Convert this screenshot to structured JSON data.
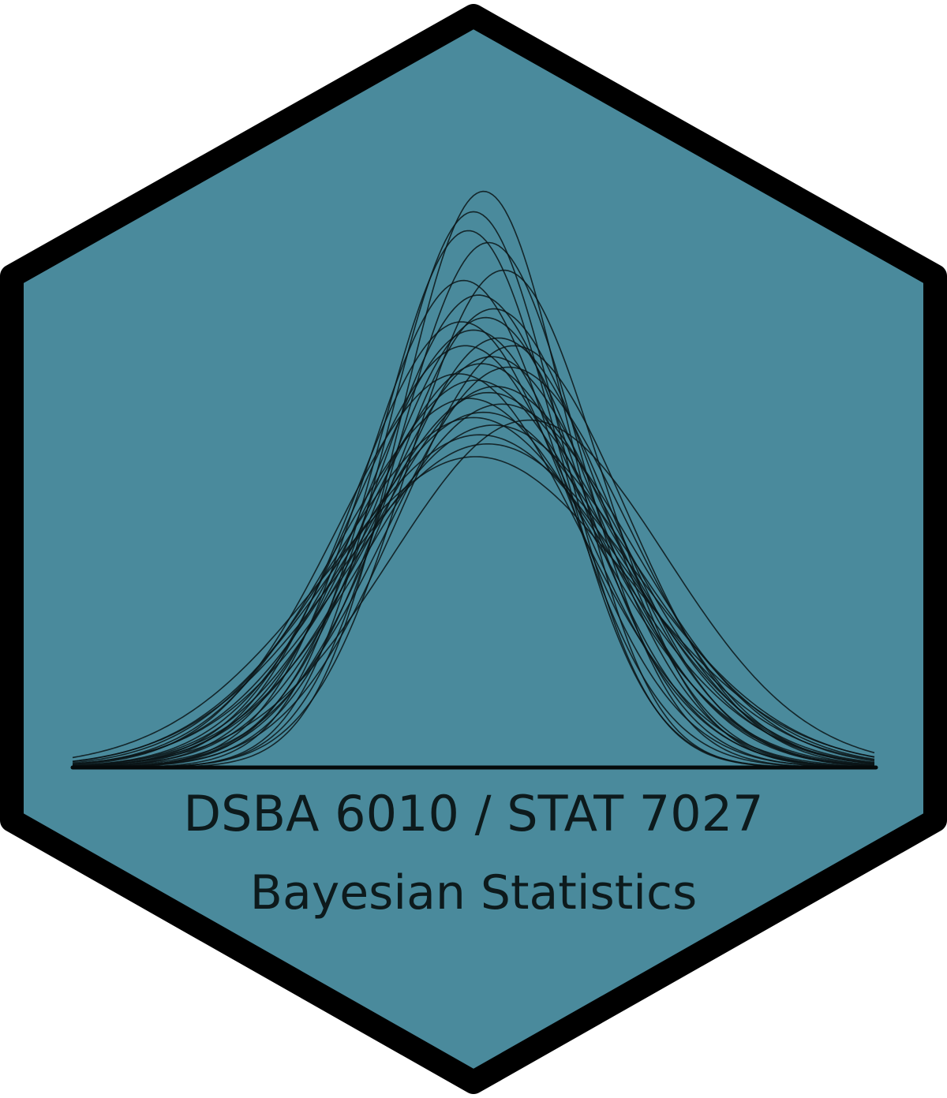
{
  "sticker": {
    "course_code": "DSBA 6010 / STAT 7027",
    "course_title": "Bayesian Statistics"
  },
  "colors": {
    "hex_fill": "#4a8a9c",
    "hex_border": "#000000",
    "curve_stroke": "#0a1416",
    "text": "#0d1a1c"
  },
  "graphic": {
    "icon": "normal-density-curves-icon",
    "curves": [
      {
        "mu": 0.0,
        "sigma": 0.85
      },
      {
        "mu": 0.1,
        "sigma": 0.82
      },
      {
        "mu": -0.05,
        "sigma": 0.88
      },
      {
        "mu": 0.15,
        "sigma": 0.9
      },
      {
        "mu": 0.3,
        "sigma": 0.95
      },
      {
        "mu": 0.05,
        "sigma": 1.0
      },
      {
        "mu": -0.1,
        "sigma": 0.97
      },
      {
        "mu": 0.2,
        "sigma": 1.03
      },
      {
        "mu": 0.12,
        "sigma": 1.05
      },
      {
        "mu": 0.0,
        "sigma": 1.08
      },
      {
        "mu": 0.25,
        "sigma": 1.1
      },
      {
        "mu": -0.08,
        "sigma": 1.12
      },
      {
        "mu": 0.18,
        "sigma": 1.15
      },
      {
        "mu": 0.08,
        "sigma": 1.17
      },
      {
        "mu": 0.35,
        "sigma": 1.18
      },
      {
        "mu": -0.15,
        "sigma": 1.2
      },
      {
        "mu": 0.02,
        "sigma": 1.22
      },
      {
        "mu": 0.22,
        "sigma": 1.24
      },
      {
        "mu": 0.15,
        "sigma": 1.26
      },
      {
        "mu": -0.05,
        "sigma": 1.28
      },
      {
        "mu": 0.28,
        "sigma": 1.3
      },
      {
        "mu": 0.1,
        "sigma": 1.33
      },
      {
        "mu": 0.0,
        "sigma": 1.35
      },
      {
        "mu": 0.2,
        "sigma": 1.38
      },
      {
        "mu": 0.06,
        "sigma": 1.42
      },
      {
        "mu": 0.14,
        "sigma": 1.46
      },
      {
        "mu": 0.55,
        "sigma": 1.36
      },
      {
        "mu": 0.02,
        "sigma": 1.52
      },
      {
        "mu": -0.12,
        "sigma": 1.06
      },
      {
        "mu": 0.4,
        "sigma": 1.12
      }
    ]
  }
}
